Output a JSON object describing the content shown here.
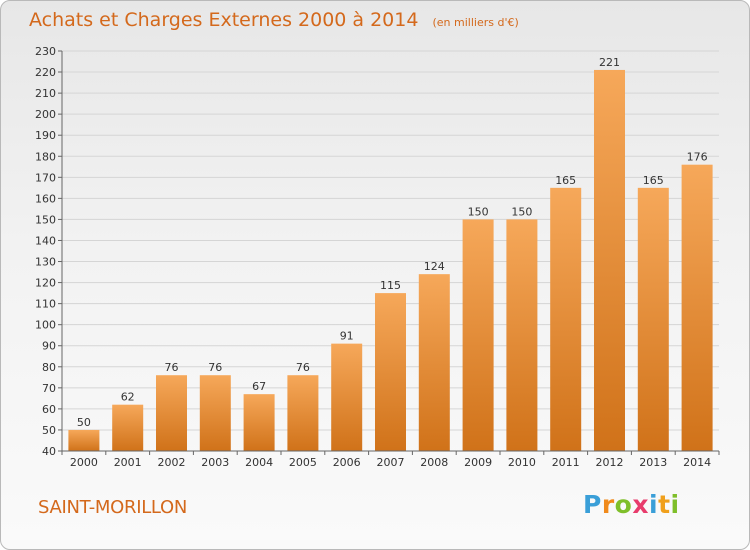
{
  "chart_data": {
    "type": "bar",
    "title": "Achats et Charges Externes 2000 à 2014",
    "subtitle": "(en milliers d'€)",
    "categories": [
      "2000",
      "2001",
      "2002",
      "2003",
      "2004",
      "2005",
      "2006",
      "2007",
      "2008",
      "2009",
      "2010",
      "2011",
      "2012",
      "2013",
      "2014"
    ],
    "values": [
      50,
      62,
      76,
      76,
      67,
      76,
      91,
      115,
      124,
      150,
      150,
      165,
      221,
      165,
      176
    ],
    "ylim": [
      40,
      230
    ],
    "yticks": [
      40,
      50,
      60,
      70,
      80,
      90,
      100,
      110,
      120,
      130,
      140,
      150,
      160,
      170,
      180,
      190,
      200,
      210,
      220,
      230
    ],
    "grid": true,
    "legend": "none",
    "colors": {
      "bar": "#f28f2c",
      "bar_light": "#f6a85a",
      "bar_dark": "#d07219",
      "text": "#d4691c"
    }
  },
  "footer": {
    "town": "SAINT-MORILLON",
    "logo_letters": [
      "P",
      "r",
      "o",
      "x",
      "i",
      "t",
      "i"
    ],
    "logo_colors": [
      "#3a9fd8",
      "#f08a1c",
      "#7fbf2a",
      "#e83c6c",
      "#3a9fd8",
      "#f0a01c",
      "#7fbf2a"
    ]
  }
}
